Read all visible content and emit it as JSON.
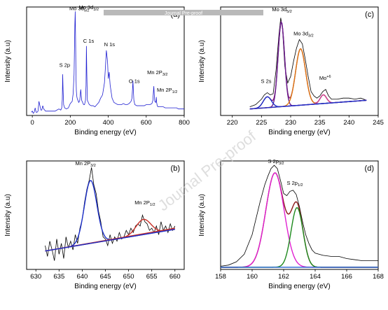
{
  "watermark": "Journal Pre-proof",
  "banner": "Journal Pre-proof",
  "chart_data": [
    {
      "id": "a",
      "type": "line",
      "panel_label": "(a)",
      "xlabel": "Binding energy (eV)",
      "ylabel": "Intensity (a.u)",
      "xlim": [
        -30,
        800
      ],
      "xticks": [
        0,
        200,
        400,
        600,
        800
      ],
      "ylim": [
        0,
        100
      ],
      "series": [
        {
          "color": "#1f1fd1",
          "x": [
            -5,
            0,
            5,
            10,
            15,
            20,
            25,
            30,
            35,
            40,
            45,
            50,
            55,
            60,
            65,
            70,
            80,
            90,
            100,
            110,
            120,
            130,
            140,
            150,
            155,
            158,
            160,
            162,
            165,
            170,
            180,
            190,
            200,
            210,
            215,
            220,
            224,
            226,
            228,
            230,
            232,
            234,
            236,
            240,
            245,
            250,
            255,
            260,
            270,
            275,
            280,
            283,
            285,
            287,
            290,
            295,
            300,
            310,
            320,
            330,
            340,
            350,
            360,
            370,
            380,
            385,
            390,
            395,
            397,
            400,
            405,
            410,
            415,
            420,
            430,
            440,
            450,
            460,
            470,
            480,
            490,
            500,
            510,
            520,
            525,
            528,
            530,
            532,
            535,
            540,
            550,
            560,
            570,
            580,
            590,
            600,
            610,
            620,
            630,
            635,
            638,
            640,
            642,
            645,
            650,
            652,
            653,
            655,
            658,
            662,
            670,
            680,
            690,
            700,
            710,
            720,
            730,
            740,
            750,
            760,
            770,
            780,
            790,
            800
          ],
          "y": [
            3,
            4,
            2,
            3,
            7,
            3,
            3,
            4,
            13,
            9,
            5,
            5,
            9,
            6,
            5,
            4,
            4,
            4,
            4,
            4,
            4,
            5,
            6,
            5,
            7,
            15,
            38,
            24,
            10,
            7,
            6,
            7,
            11,
            13,
            20,
            38,
            83,
            96,
            70,
            36,
            23,
            18,
            16,
            14,
            12,
            14,
            24,
            14,
            10,
            10,
            14,
            28,
            64,
            40,
            14,
            12,
            10,
            9,
            9,
            8,
            10,
            12,
            16,
            19,
            30,
            44,
            60,
            52,
            47,
            34,
            40,
            28,
            22,
            16,
            12,
            11,
            10,
            10,
            10,
            11,
            10,
            10,
            11,
            13,
            16,
            25,
            32,
            24,
            14,
            10,
            9,
            9,
            9,
            9,
            9,
            10,
            10,
            10,
            11,
            14,
            22,
            27,
            20,
            13,
            12,
            14,
            17,
            12,
            9,
            8,
            8,
            8,
            8,
            7,
            7,
            7,
            7,
            7,
            7,
            7,
            6,
            6,
            6,
            6
          ]
        }
      ],
      "annotations": [
        {
          "text": "Mo 3d",
          "sub": "5/2",
          "x": 195,
          "y": 97
        },
        {
          "text": "Mo 3d",
          "sub": "3/2",
          "x": 245,
          "y": 98
        },
        {
          "text": "C 1s",
          "x": 268,
          "y": 67
        },
        {
          "text": "S 2p",
          "x": 142,
          "y": 45
        },
        {
          "text": "N 1s",
          "x": 378,
          "y": 64
        },
        {
          "text": "O 1s",
          "x": 508,
          "y": 30
        },
        {
          "text": "Mn 2P",
          "sub": "3/2",
          "x": 605,
          "y": 38
        },
        {
          "text": "Mn 2P",
          "sub": "1/2",
          "x": 656,
          "y": 22
        }
      ]
    },
    {
      "id": "b",
      "type": "line",
      "panel_label": "(b)",
      "xlabel": "Binding energy (eV)",
      "ylabel": "Intensity (a.u)",
      "xlim": [
        628,
        662
      ],
      "xticks": [
        630,
        635,
        640,
        645,
        650,
        655,
        660
      ],
      "ylim": [
        0,
        100
      ],
      "series": [
        {
          "name": "raw",
          "color": "#000000",
          "x": [
            632,
            632.5,
            633,
            633.5,
            634,
            634.5,
            635,
            635.5,
            636,
            636.5,
            637,
            637.5,
            638,
            638.5,
            639,
            639.5,
            640,
            640.5,
            641,
            641.5,
            642,
            642.5,
            643,
            643.5,
            644,
            644.5,
            645,
            645.5,
            646,
            646.5,
            647,
            647.5,
            648,
            648.5,
            649,
            649.5,
            650,
            650.5,
            651,
            651.5,
            652,
            652.5,
            653,
            653.5,
            654,
            654.5,
            655,
            655.5,
            656,
            656.5,
            657,
            657.5,
            658,
            658.5,
            659,
            659.5,
            660
          ],
          "y": [
            22,
            12,
            26,
            18,
            8,
            28,
            14,
            24,
            10,
            30,
            20,
            26,
            18,
            32,
            24,
            38,
            46,
            62,
            74,
            82,
            94,
            78,
            70,
            54,
            44,
            30,
            28,
            22,
            32,
            24,
            30,
            26,
            34,
            28,
            30,
            36,
            32,
            38,
            34,
            40,
            42,
            40,
            50,
            44,
            42,
            36,
            38,
            34,
            40,
            32,
            44,
            36,
            40,
            34,
            42,
            36,
            40
          ]
        },
        {
          "name": "Mn 2p3/2 fit",
          "color": "#1c2fc8",
          "fit": "gauss",
          "center": 641.8,
          "sigma": 1.35,
          "amp": 58
        },
        {
          "name": "Mn 2p1/2 fit",
          "color": "#c83028",
          "fit": "gauss",
          "center": 653.2,
          "sigma": 1.6,
          "amp": 14
        },
        {
          "name": "background",
          "color": "#c83028",
          "fit": "line",
          "x": [
            632,
            660
          ],
          "y": [
            17,
            38
          ]
        },
        {
          "name": "baseline",
          "color": "#1c2fc8",
          "fit": "line",
          "x": [
            632,
            660
          ],
          "y": [
            17,
            37
          ]
        }
      ],
      "annotations": [
        {
          "text": "Mn 2P",
          "sub": "3/2",
          "x": 638.5,
          "y": 96
        },
        {
          "text": "Mn 2P",
          "sub": "1/2",
          "x": 651.3,
          "y": 60
        }
      ]
    },
    {
      "id": "c",
      "type": "line",
      "panel_label": "(c)",
      "xlabel": "Binding energy (eV)",
      "ylabel": "Intensity (a.u)",
      "xlim": [
        218,
        245
      ],
      "xticks": [
        220,
        225,
        230,
        235,
        240,
        245
      ],
      "ylim": [
        0,
        100
      ],
      "series": [
        {
          "name": "raw",
          "color": "#000000",
          "x": [
            223,
            224,
            225,
            225.5,
            226,
            226.5,
            227,
            227.5,
            228,
            228.3,
            228.6,
            229,
            229.5,
            230,
            230.5,
            231,
            231.5,
            232,
            232.5,
            233,
            233.5,
            234,
            234.5,
            235,
            235.5,
            236,
            236.5,
            237,
            238,
            239,
            240,
            241,
            242,
            243
          ],
          "y": [
            8,
            10,
            15,
            19,
            21,
            19,
            20,
            42,
            75,
            90,
            80,
            45,
            30,
            36,
            50,
            62,
            70,
            66,
            52,
            36,
            22,
            18,
            16,
            18,
            22,
            24,
            18,
            15,
            15,
            16,
            16,
            15,
            16,
            14
          ]
        },
        {
          "name": "envelope",
          "color": "#8b1a73",
          "fit": "sum"
        },
        {
          "name": "Mo 3d5/2",
          "color": "#6a1f8f",
          "fit": "gauss",
          "center": 228.4,
          "sigma": 0.55,
          "amp": 78
        },
        {
          "name": "Mo 3d3/2",
          "color": "#e07a10",
          "fit": "gauss",
          "center": 231.7,
          "sigma": 0.85,
          "amp": 52
        },
        {
          "name": "S 2s",
          "color": "#1c2fc8",
          "fit": "gauss",
          "center": 226.0,
          "sigma": 0.7,
          "amp": 10
        },
        {
          "name": "Mo+6",
          "color": "#d0408a",
          "fit": "gauss",
          "center": 235.6,
          "sigma": 0.55,
          "amp": 8
        },
        {
          "name": "baseline",
          "color": "#1c2fc8",
          "fit": "line",
          "x": [
            223,
            243
          ],
          "y": [
            6,
            14
          ]
        }
      ],
      "annotations": [
        {
          "text": "Mo 3d",
          "sub": "5/2",
          "x": 226.8,
          "y": 96
        },
        {
          "text": "Mo 3d",
          "sub": "3/2",
          "x": 230.5,
          "y": 74
        },
        {
          "text": "S 2s",
          "x": 224.9,
          "y": 30
        },
        {
          "text": "Mo",
          "sup": "+6",
          "x": 234.9,
          "y": 33
        }
      ]
    },
    {
      "id": "d",
      "type": "line",
      "panel_label": "(d)",
      "xlabel": "Binding energy (eV)",
      "ylabel": "Intensity (a.u)",
      "xlim": [
        158,
        168
      ],
      "xticks": [
        158,
        160,
        162,
        164,
        166,
        168
      ],
      "ylim": [
        0,
        100
      ],
      "series": [
        {
          "name": "raw",
          "color": "#000000",
          "x": [
            158,
            158.5,
            159,
            159.5,
            160,
            160.5,
            160.8,
            161,
            161.2,
            161.4,
            161.6,
            161.8,
            162,
            162.2,
            162.4,
            162.6,
            162.8,
            163,
            163.2,
            163.4,
            163.6,
            163.8,
            164,
            164.5,
            165,
            165.5,
            166,
            166.5,
            167,
            167.5,
            168
          ],
          "y": [
            3,
            4,
            7,
            14,
            32,
            62,
            78,
            86,
            93,
            96,
            93,
            82,
            70,
            68,
            72,
            73,
            69,
            58,
            44,
            32,
            24,
            18,
            15,
            13,
            12,
            12,
            10,
            9,
            8,
            8,
            8
          ]
        },
        {
          "name": "envelope",
          "color": "#8b1a1a",
          "fit": "sum"
        },
        {
          "name": "S 2p3/2",
          "color": "#e020d0",
          "fit": "gauss",
          "center": 161.45,
          "sigma": 0.58,
          "amp": 87
        },
        {
          "name": "S 2p1/2",
          "color": "#1e8a1e",
          "fit": "gauss",
          "center": 162.85,
          "sigma": 0.38,
          "amp": 55
        },
        {
          "name": "baseline",
          "color": "#2060d0",
          "fit": "line",
          "x": [
            158,
            168
          ],
          "y": [
            2,
            2
          ]
        }
      ],
      "annotations": [
        {
          "text": "S 2p",
          "sub": "3/2",
          "x": 161.0,
          "y": 98
        },
        {
          "text": "S 2p",
          "sub": "1/2",
          "x": 162.2,
          "y": 78
        }
      ]
    }
  ]
}
